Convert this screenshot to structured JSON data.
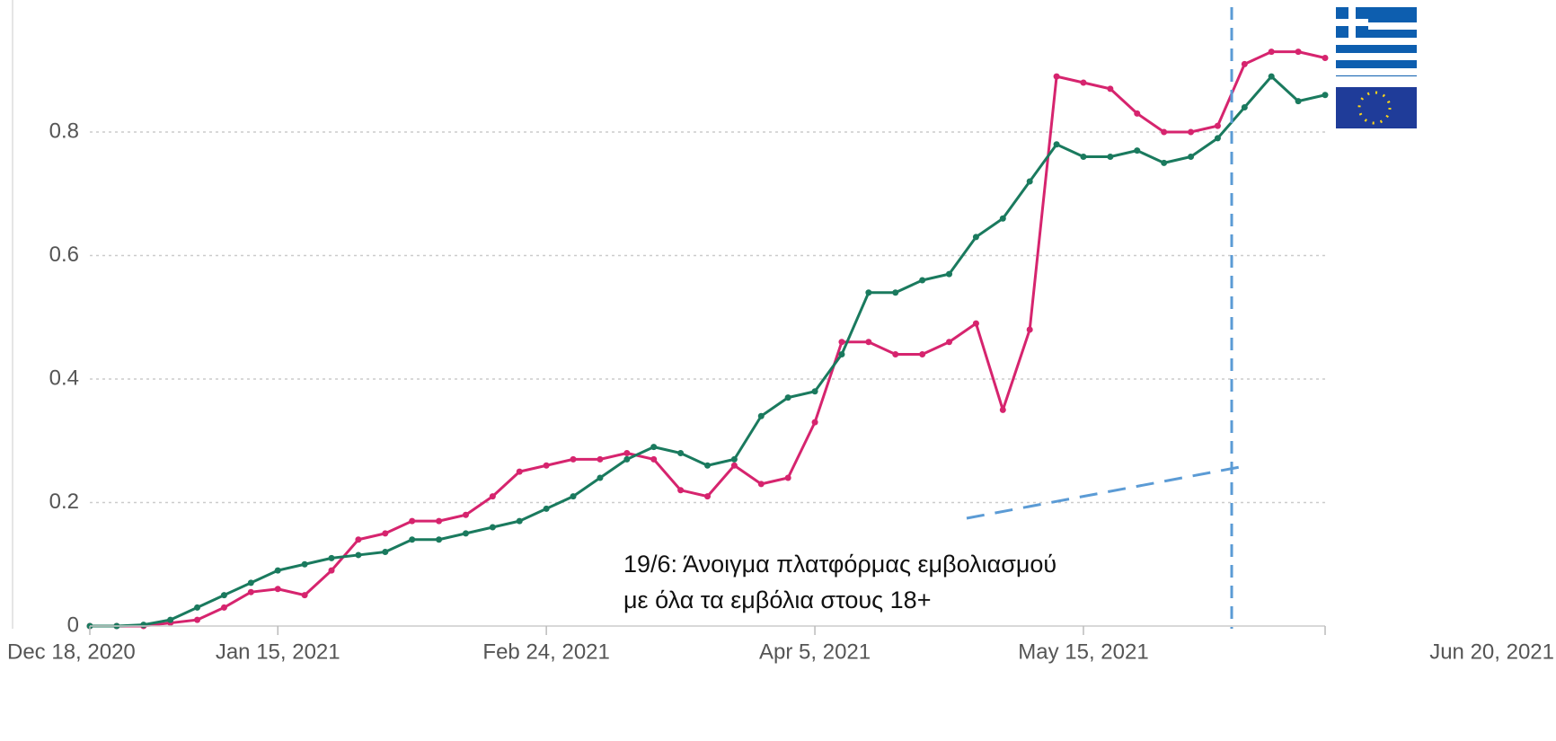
{
  "chart_data": {
    "type": "line",
    "x": [
      "2020-12-18",
      "2020-12-22",
      "2020-12-26",
      "2020-12-30",
      "2021-01-03",
      "2021-01-07",
      "2021-01-11",
      "2021-01-15",
      "2021-01-19",
      "2021-01-23",
      "2021-01-27",
      "2021-01-31",
      "2021-02-04",
      "2021-02-08",
      "2021-02-12",
      "2021-02-16",
      "2021-02-20",
      "2021-02-24",
      "2021-02-28",
      "2021-03-04",
      "2021-03-08",
      "2021-03-12",
      "2021-03-16",
      "2021-03-20",
      "2021-03-24",
      "2021-03-28",
      "2021-04-01",
      "2021-04-05",
      "2021-04-09",
      "2021-04-13",
      "2021-04-17",
      "2021-04-21",
      "2021-04-25",
      "2021-04-29",
      "2021-05-03",
      "2021-05-07",
      "2021-05-11",
      "2021-05-15",
      "2021-05-19",
      "2021-05-23",
      "2021-05-27",
      "2021-05-31",
      "2021-06-04",
      "2021-06-08",
      "2021-06-12",
      "2021-06-16",
      "2021-06-20"
    ],
    "series": [
      {
        "color": "#d6246e",
        "values": [
          0,
          0,
          0,
          0.005,
          0.01,
          0.03,
          0.055,
          0.06,
          0.05,
          0.09,
          0.14,
          0.15,
          0.17,
          0.17,
          0.18,
          0.21,
          0.25,
          0.26,
          0.27,
          0.27,
          0.28,
          0.27,
          0.22,
          0.21,
          0.26,
          0.23,
          0.24,
          0.33,
          0.46,
          0.46,
          0.44,
          0.44,
          0.46,
          0.49,
          0.35,
          0.48,
          0.89,
          0.88,
          0.87,
          0.83,
          0.8,
          0.8,
          0.81,
          0.91,
          0.93,
          0.93,
          0.92
        ]
      },
      {
        "color": "#1a7a5e",
        "values": [
          0,
          0,
          0.002,
          0.01,
          0.03,
          0.05,
          0.07,
          0.09,
          0.1,
          0.11,
          0.115,
          0.12,
          0.14,
          0.14,
          0.15,
          0.16,
          0.17,
          0.19,
          0.21,
          0.24,
          0.27,
          0.29,
          0.28,
          0.26,
          0.27,
          0.34,
          0.37,
          0.38,
          0.44,
          0.54,
          0.54,
          0.56,
          0.57,
          0.63,
          0.66,
          0.72,
          0.78,
          0.76,
          0.76,
          0.77,
          0.75,
          0.76,
          0.79,
          0.84,
          0.89,
          0.85,
          0.86
        ]
      }
    ],
    "xlim": [
      "2020-12-18",
      "2021-06-20"
    ],
    "xticks": [
      {
        "value": "2020-12-18",
        "label": "Dec 18, 2020"
      },
      {
        "value": "2021-01-15",
        "label": "Jan 15, 2021"
      },
      {
        "value": "2021-02-24",
        "label": "Feb 24, 2021"
      },
      {
        "value": "2021-04-05",
        "label": "Apr 5, 2021"
      },
      {
        "value": "2021-05-15",
        "label": "May 15, 2021"
      },
      {
        "value": "2021-06-20",
        "label": "Jun 20, 2021"
      }
    ],
    "ylim": [
      0,
      1
    ],
    "yticks": [
      0,
      0.2,
      0.4,
      0.6,
      0.8
    ],
    "grid": true,
    "annotation": [
      "19/6: Άνοιγμα πλατφόρμας εμβολιασμού",
      "με όλα τα εμβόλια στους 18+"
    ]
  }
}
